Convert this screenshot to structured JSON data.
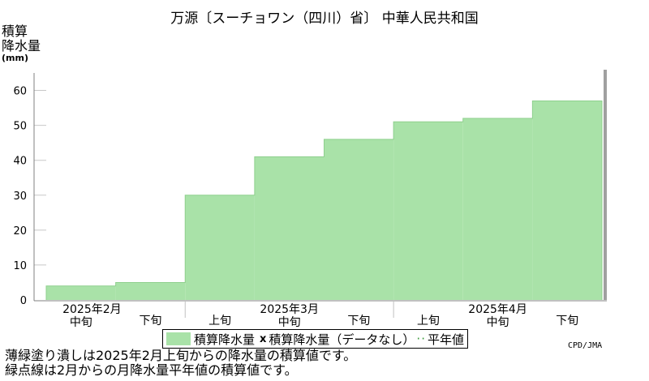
{
  "title": "万源〔スーチョワン（四川）省〕 中華人民共和国",
  "ylabel_line1": "積算",
  "ylabel_line2": "降水量",
  "ylabel_unit": "(mm)",
  "legend": {
    "accumulated": "積算降水量",
    "nodata_marker": "x",
    "nodata": "積算降水量（データなし）",
    "normal": "平年値"
  },
  "credit": "CPD/JMA",
  "notes": [
    "薄緑塗り潰しは2025年2月上旬からの降水量の積算値です。",
    "緑点線は2月からの月降水量平年値の積算値です。"
  ],
  "colors": {
    "fill": "#a9e2a8",
    "edge": "#8fd08e",
    "grid": "#c8c8c8",
    "axis": "#808080"
  },
  "chart_data": {
    "type": "area",
    "ylim": [
      0,
      65
    ],
    "yticks": [
      0,
      10,
      20,
      30,
      40,
      50,
      60
    ],
    "categories": [
      "中旬",
      "下旬",
      "上旬",
      "中旬",
      "下旬",
      "上旬",
      "中旬",
      "下旬"
    ],
    "months": [
      {
        "label": "2025年2月",
        "start": 0,
        "count": 2
      },
      {
        "label": "2025年3月",
        "start": 2,
        "count": 3
      },
      {
        "label": "2025年4月",
        "start": 5,
        "count": 3
      }
    ],
    "values": [
      4,
      5,
      30,
      41,
      46,
      51,
      52,
      57
    ],
    "grid": true
  }
}
